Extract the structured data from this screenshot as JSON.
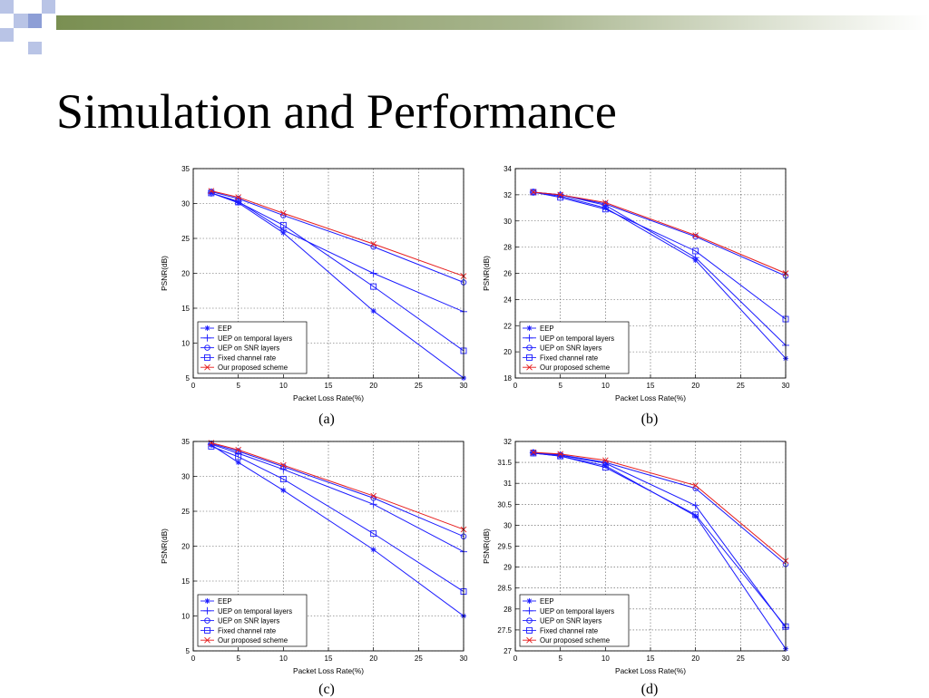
{
  "slide": {
    "title": "Simulation and Performance"
  },
  "colors": {
    "background": "#ffffff",
    "header_gradient_start": "#7a8f52",
    "header_gradient_end": "#ffffff",
    "deco_square_light": "#b9c4e6",
    "deco_square_mid": "#8d9ed6",
    "blue_series": "#1a1aff",
    "red_series": "#e61c1c",
    "grid": "#555555"
  },
  "chart_data": [
    {
      "type": "line",
      "caption": "(a)",
      "xlabel": "Packet Loss Rate(%)",
      "ylabel": "PSNR(dB)",
      "xlim": [
        0,
        30
      ],
      "ylim": [
        5,
        35
      ],
      "xticks": [
        0,
        5,
        10,
        15,
        20,
        25,
        30
      ],
      "yticks": [
        5,
        10,
        15,
        20,
        25,
        30,
        35
      ],
      "grid": true,
      "legend_position": "bottom-left",
      "series": [
        {
          "name": "EEP",
          "marker": "star",
          "color": "blue",
          "x": [
            2,
            5,
            10,
            20,
            30
          ],
          "y": [
            31.5,
            30.1,
            25.8,
            14.6,
            5.0
          ]
        },
        {
          "name": "UEP on temporal layers",
          "marker": "plus",
          "color": "blue",
          "x": [
            2,
            5,
            10,
            20,
            30
          ],
          "y": [
            31.5,
            30.3,
            26.2,
            20.0,
            14.5
          ]
        },
        {
          "name": "UEP on SNR layers",
          "marker": "circle",
          "color": "blue",
          "x": [
            2,
            5,
            10,
            20,
            30
          ],
          "y": [
            31.7,
            30.7,
            28.3,
            23.8,
            18.7
          ]
        },
        {
          "name": "Fixed channel rate",
          "marker": "square",
          "color": "blue",
          "x": [
            2,
            5,
            10,
            20,
            30
          ],
          "y": [
            31.5,
            30.2,
            26.9,
            18.1,
            8.9
          ]
        },
        {
          "name": "Our proposed scheme",
          "marker": "x",
          "color": "red",
          "x": [
            2,
            5,
            10,
            20,
            30
          ],
          "y": [
            31.8,
            30.9,
            28.6,
            24.2,
            19.6
          ]
        }
      ]
    },
    {
      "type": "line",
      "caption": "(b)",
      "xlabel": "Packet Loss Rate(%)",
      "ylabel": "PSNR(dB)",
      "xlim": [
        0,
        30
      ],
      "ylim": [
        18,
        34
      ],
      "xticks": [
        0,
        5,
        10,
        15,
        20,
        25,
        30
      ],
      "yticks": [
        18,
        20,
        22,
        24,
        26,
        28,
        30,
        32,
        34
      ],
      "grid": true,
      "legend_position": "bottom-left",
      "series": [
        {
          "name": "EEP",
          "marker": "star",
          "color": "blue",
          "x": [
            2,
            5,
            10,
            20,
            30
          ],
          "y": [
            32.2,
            31.9,
            31.0,
            27.0,
            19.5
          ]
        },
        {
          "name": "UEP on temporal layers",
          "marker": "plus",
          "color": "blue",
          "x": [
            2,
            5,
            10,
            20,
            30
          ],
          "y": [
            32.2,
            32.0,
            31.2,
            27.2,
            20.5
          ]
        },
        {
          "name": "UEP on SNR layers",
          "marker": "circle",
          "color": "blue",
          "x": [
            2,
            5,
            10,
            20,
            30
          ],
          "y": [
            32.2,
            32.0,
            31.3,
            28.8,
            25.8
          ]
        },
        {
          "name": "Fixed channel rate",
          "marker": "square",
          "color": "blue",
          "x": [
            2,
            5,
            10,
            20,
            30
          ],
          "y": [
            32.2,
            31.8,
            30.9,
            27.7,
            22.5
          ]
        },
        {
          "name": "Our proposed scheme",
          "marker": "x",
          "color": "red",
          "x": [
            2,
            5,
            10,
            20,
            30
          ],
          "y": [
            32.2,
            32.0,
            31.4,
            28.9,
            26.0
          ]
        }
      ]
    },
    {
      "type": "line",
      "caption": "(c)",
      "xlabel": "Packet Loss Rate(%)",
      "ylabel": "PSNR(dB)",
      "xlim": [
        0,
        30
      ],
      "ylim": [
        5,
        35
      ],
      "xticks": [
        0,
        5,
        10,
        15,
        20,
        25,
        30
      ],
      "yticks": [
        5,
        10,
        15,
        20,
        25,
        30,
        35
      ],
      "grid": true,
      "legend_position": "bottom-left",
      "series": [
        {
          "name": "EEP",
          "marker": "star",
          "color": "blue",
          "x": [
            2,
            5,
            10,
            20,
            30
          ],
          "y": [
            34.5,
            32.0,
            28.0,
            19.5,
            10.0
          ]
        },
        {
          "name": "UEP on temporal layers",
          "marker": "plus",
          "color": "blue",
          "x": [
            2,
            5,
            10,
            20,
            30
          ],
          "y": [
            34.6,
            33.3,
            31.0,
            26.0,
            19.2
          ]
        },
        {
          "name": "UEP on SNR layers",
          "marker": "circle",
          "color": "blue",
          "x": [
            2,
            5,
            10,
            20,
            30
          ],
          "y": [
            34.7,
            33.6,
            31.4,
            26.9,
            21.4
          ]
        },
        {
          "name": "Fixed channel rate",
          "marker": "square",
          "color": "blue",
          "x": [
            2,
            5,
            10,
            20,
            30
          ],
          "y": [
            34.3,
            32.8,
            29.6,
            21.8,
            13.5
          ]
        },
        {
          "name": "Our proposed scheme",
          "marker": "x",
          "color": "red",
          "x": [
            2,
            5,
            10,
            20,
            30
          ],
          "y": [
            34.8,
            33.8,
            31.6,
            27.2,
            22.4
          ]
        }
      ]
    },
    {
      "type": "line",
      "caption": "(d)",
      "xlabel": "Packet Loss Rate(%)",
      "ylabel": "PSNR(dB)",
      "xlim": [
        0,
        30
      ],
      "ylim": [
        27,
        32
      ],
      "xticks": [
        0,
        5,
        10,
        15,
        20,
        25,
        30
      ],
      "yticks": [
        27,
        27.5,
        28,
        28.5,
        29,
        29.5,
        30,
        30.5,
        31,
        31.5,
        32
      ],
      "grid": true,
      "legend_position": "bottom-left",
      "series": [
        {
          "name": "EEP",
          "marker": "star",
          "color": "blue",
          "x": [
            2,
            5,
            10,
            20,
            30
          ],
          "y": [
            31.72,
            31.65,
            31.42,
            30.22,
            27.05
          ]
        },
        {
          "name": "UEP on temporal layers",
          "marker": "plus",
          "color": "blue",
          "x": [
            2,
            5,
            10,
            20,
            30
          ],
          "y": [
            31.73,
            31.67,
            31.48,
            30.47,
            27.55
          ]
        },
        {
          "name": "UEP on SNR layers",
          "marker": "circle",
          "color": "blue",
          "x": [
            2,
            5,
            10,
            20,
            30
          ],
          "y": [
            31.74,
            31.68,
            31.5,
            30.88,
            29.07
          ]
        },
        {
          "name": "Fixed channel rate",
          "marker": "square",
          "color": "blue",
          "x": [
            2,
            5,
            10,
            20,
            30
          ],
          "y": [
            31.72,
            31.65,
            31.38,
            30.25,
            27.58
          ]
        },
        {
          "name": "Our proposed scheme",
          "marker": "x",
          "color": "red",
          "x": [
            2,
            5,
            10,
            20,
            30
          ],
          "y": [
            31.74,
            31.7,
            31.55,
            30.95,
            29.15
          ]
        }
      ]
    }
  ]
}
